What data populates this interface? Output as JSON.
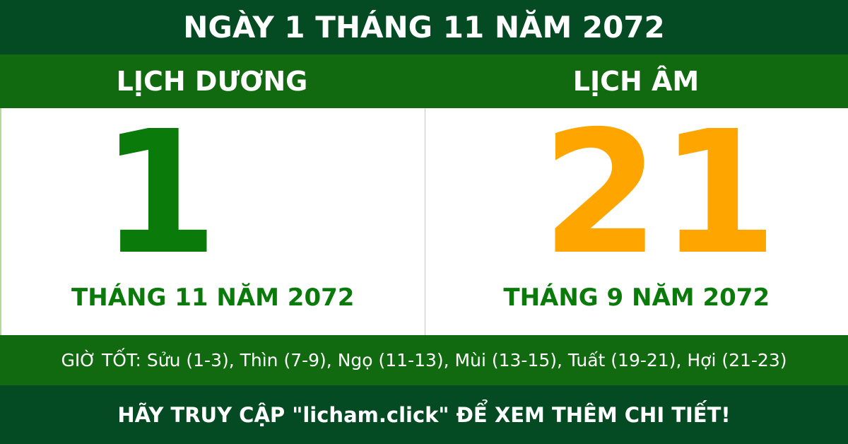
{
  "title": "NGÀY 1 THÁNG 11 NĂM 2072",
  "solar": {
    "heading": "LỊCH DƯƠNG",
    "day": "1",
    "month_year": "THÁNG 11 NĂM 2072"
  },
  "lunar": {
    "heading": "LỊCH ÂM",
    "day": "21",
    "month_year": "THÁNG 9 NĂM 2072"
  },
  "good_hours": "GIỜ TỐT: Sửu (1-3), Thìn (7-9), Ngọ (11-13), Mùi (13-15), Tuất (19-21), Hợi (21-23)",
  "footer": "HÃY TRUY CẬP \"licham.click\" ĐỂ XEM THÊM CHI TIẾT!",
  "colors": {
    "dark_green": "#044a22",
    "green": "#116a10",
    "text_green": "#0a7a0a",
    "orange": "#ffa500"
  }
}
